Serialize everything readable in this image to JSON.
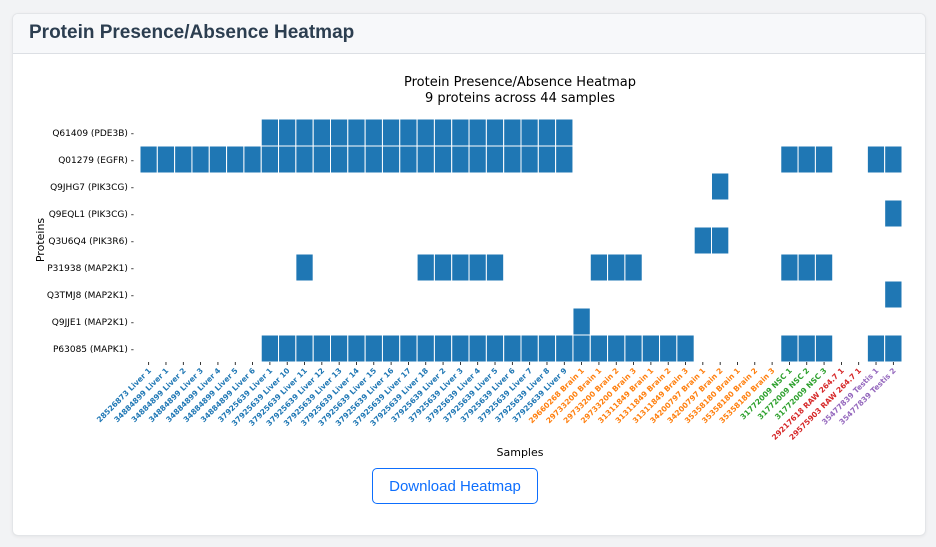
{
  "header": {
    "title": "Protein Presence/Absence Heatmap"
  },
  "download_label": "Download Heatmap",
  "colors": {
    "present": "#1f77b4",
    "absent": "#ffffff",
    "Liver": "#1f77b4",
    "Brain": "#ff7f0e",
    "NSC": "#2ca02c",
    "RAW 264.7": "#d62728",
    "Testis": "#9467bd"
  },
  "chart_data": {
    "type": "heatmap",
    "title": "Protein Presence/Absence Heatmap",
    "subtitle": "9 proteins across 44 samples",
    "xlabel": "Samples",
    "ylabel": "Proteins",
    "grid": false,
    "rows": [
      "Q61409 (PDE3B)",
      "Q01279 (EGFR)",
      "Q9JHG7 (PIK3CG)",
      "Q9EQL1 (PIK3CG)",
      "Q3U6Q4 (PIK3R6)",
      "P31938 (MAP2K1)",
      "Q3TMJ8 (MAP2K1)",
      "Q9JJE1 (MAP2K1)",
      "P63085 (MAPK1)"
    ],
    "columns": [
      {
        "label": "28526873 Liver 1",
        "group": "Liver"
      },
      {
        "label": "34884899 Liver 1",
        "group": "Liver"
      },
      {
        "label": "34884899 Liver 2",
        "group": "Liver"
      },
      {
        "label": "34884899 Liver 3",
        "group": "Liver"
      },
      {
        "label": "34884899 Liver 4",
        "group": "Liver"
      },
      {
        "label": "34884899 Liver 5",
        "group": "Liver"
      },
      {
        "label": "34884899 Liver 6",
        "group": "Liver"
      },
      {
        "label": "37925639 Liver 1",
        "group": "Liver"
      },
      {
        "label": "37925639 Liver 10",
        "group": "Liver"
      },
      {
        "label": "37925639 Liver 11",
        "group": "Liver"
      },
      {
        "label": "37925639 Liver 12",
        "group": "Liver"
      },
      {
        "label": "37925639 Liver 13",
        "group": "Liver"
      },
      {
        "label": "37925639 Liver 14",
        "group": "Liver"
      },
      {
        "label": "37925639 Liver 15",
        "group": "Liver"
      },
      {
        "label": "37925639 Liver 16",
        "group": "Liver"
      },
      {
        "label": "37925639 Liver 17",
        "group": "Liver"
      },
      {
        "label": "37925639 Liver 18",
        "group": "Liver"
      },
      {
        "label": "37925639 Liver 2",
        "group": "Liver"
      },
      {
        "label": "37925639 Liver 3",
        "group": "Liver"
      },
      {
        "label": "37925639 Liver 4",
        "group": "Liver"
      },
      {
        "label": "37925639 Liver 5",
        "group": "Liver"
      },
      {
        "label": "37925639 Liver 6",
        "group": "Liver"
      },
      {
        "label": "37925639 Liver 7",
        "group": "Liver"
      },
      {
        "label": "37925639 Liver 8",
        "group": "Liver"
      },
      {
        "label": "37925639 Liver 9",
        "group": "Liver"
      },
      {
        "label": "29660268 Brain 1",
        "group": "Brain"
      },
      {
        "label": "29733200 Brain 1",
        "group": "Brain"
      },
      {
        "label": "29733200 Brain 2",
        "group": "Brain"
      },
      {
        "label": "29733200 Brain 3",
        "group": "Brain"
      },
      {
        "label": "31311849 Brain 1",
        "group": "Brain"
      },
      {
        "label": "31311849 Brain 2",
        "group": "Brain"
      },
      {
        "label": "31311849 Brain 3",
        "group": "Brain"
      },
      {
        "label": "34200797 Brain 1",
        "group": "Brain"
      },
      {
        "label": "34200797 Brain 2",
        "group": "Brain"
      },
      {
        "label": "35358180 Brain 1",
        "group": "Brain"
      },
      {
        "label": "35358180 Brain 2",
        "group": "Brain"
      },
      {
        "label": "35358180 Brain 3",
        "group": "Brain"
      },
      {
        "label": "31772009 NSC 1",
        "group": "NSC"
      },
      {
        "label": "31772009 NSC 2",
        "group": "NSC"
      },
      {
        "label": "31772009 NSC 3",
        "group": "NSC"
      },
      {
        "label": "29217618 RAW 264.7 1",
        "group": "RAW 264.7"
      },
      {
        "label": "29575903 RAW 264.7 1",
        "group": "RAW 264.7"
      },
      {
        "label": "35477839 Testis 1",
        "group": "Testis"
      },
      {
        "label": "35477839 Testis 2",
        "group": "Testis"
      }
    ],
    "present_columns": {
      "Q61409 (PDE3B)": [
        8,
        9,
        10,
        11,
        12,
        13,
        14,
        15,
        16,
        17,
        18,
        19,
        20,
        21,
        22,
        23,
        24,
        25
      ],
      "Q01279 (EGFR)": [
        1,
        2,
        3,
        4,
        5,
        6,
        7,
        8,
        9,
        10,
        11,
        12,
        13,
        14,
        15,
        16,
        17,
        18,
        19,
        20,
        21,
        22,
        23,
        24,
        25,
        38,
        39,
        40,
        43,
        44
      ],
      "Q9JHG7 (PIK3CG)": [
        34
      ],
      "Q9EQL1 (PIK3CG)": [
        44
      ],
      "Q3U6Q4 (PIK3R6)": [
        33,
        34
      ],
      "P31938 (MAP2K1)": [
        10,
        17,
        18,
        19,
        20,
        21,
        27,
        28,
        29,
        38,
        39,
        40
      ],
      "Q3TMJ8 (MAP2K1)": [
        44
      ],
      "Q9JJE1 (MAP2K1)": [
        26
      ],
      "P63085 (MAPK1)": [
        8,
        9,
        10,
        11,
        12,
        13,
        14,
        15,
        16,
        17,
        18,
        19,
        20,
        21,
        22,
        23,
        24,
        25,
        26,
        27,
        28,
        29,
        30,
        31,
        32,
        38,
        39,
        40,
        43,
        44
      ]
    }
  }
}
